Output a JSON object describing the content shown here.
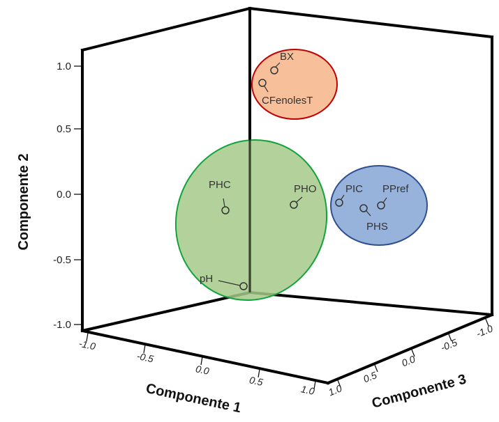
{
  "chart_data": {
    "type": "scatter",
    "projection": "3d",
    "axes": {
      "x": {
        "label": "Componente 1",
        "range": [
          -1.0,
          1.0
        ],
        "ticks": [
          "-1.0",
          "-0.5",
          "0.0",
          "0.5",
          "1.0"
        ]
      },
      "y": {
        "label": "Componente 2",
        "range": [
          -1.0,
          1.0
        ],
        "ticks": [
          "-1.0",
          "-0.5",
          "0.0",
          "0.5",
          "1.0"
        ]
      },
      "z": {
        "label": "Componente 3",
        "range": [
          -1.0,
          1.0
        ],
        "ticks": [
          "1.0",
          "0.5",
          "0.0",
          "-0.5",
          "-1.0"
        ]
      }
    },
    "points": [
      {
        "label": "BX",
        "group": "orange"
      },
      {
        "label": "CFenolesT",
        "group": "orange"
      },
      {
        "label": "PHC",
        "group": "green"
      },
      {
        "label": "PHO",
        "group": "green"
      },
      {
        "label": "pH",
        "group": "green"
      },
      {
        "label": "PIC",
        "group": "blue"
      },
      {
        "label": "PPref",
        "group": "blue"
      },
      {
        "label": "PHS",
        "group": "blue"
      }
    ],
    "groups": {
      "orange": {
        "fill": "#F8C09A",
        "stroke": "#C00000"
      },
      "green": {
        "fill": "#A6C98A",
        "stroke": "#11A33A"
      },
      "blue": {
        "fill": "#97B3DB",
        "stroke": "#2F4F91"
      }
    }
  }
}
